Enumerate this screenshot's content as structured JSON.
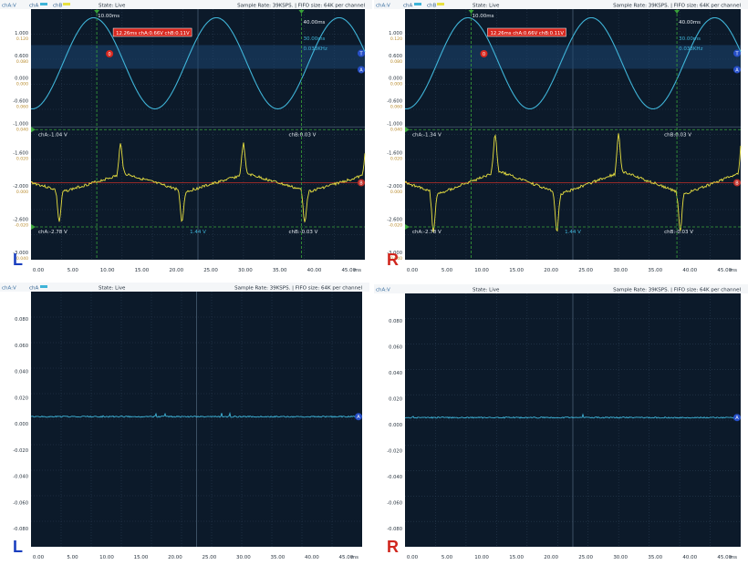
{
  "panels": [
    {
      "id": "p1",
      "side": "L",
      "type": "dual",
      "ch_a_label": "chA",
      "ch_b_label": "chB",
      "axis_unit": "chA:V",
      "state": "State: Live",
      "sample_info": "Sample Rate: 39KSPS. | FIFO size: 64K per channel",
      "time_unit": "ms",
      "x_ticks": [
        "0.00",
        "5.00",
        "10.00",
        "15.00",
        "20.00",
        "25.00",
        "30.00",
        "35.00",
        "40.00",
        "45.00"
      ],
      "chA_ticks_left": [
        "1.000",
        "0.600",
        "0.000",
        "-0.600",
        "-1.000"
      ],
      "chA_ticks_right": [
        "0.120",
        "0.080",
        "0.000",
        "0.060",
        "0.040"
      ],
      "chB_ticks_left": [
        "-1.600",
        "-2.000",
        "-2.600",
        "-3.000"
      ],
      "chB_ticks_right": [
        "0.020",
        "0.000",
        "-0.020",
        "-0.040"
      ],
      "cursor1_label": "10.00ms",
      "cursor2_label": "40.00ms",
      "delta_time": "30.00ms",
      "freq": "0.033KHz",
      "readout": "12.26ms  chA:0.66V  chB:0.11V",
      "chA_max": "chA:-1.04 V",
      "chA_min": "chA:-2.78 V",
      "chB_max": "chB:0.03 V",
      "chB_min": "chB:-0.03 V",
      "mid_label": "1.44 V",
      "marker0": "0",
      "marker_T": "T",
      "marker_A": "A",
      "marker_B": "B"
    },
    {
      "id": "p2",
      "side": "R",
      "type": "dual",
      "ch_a_label": "chA",
      "ch_b_label": "chB",
      "axis_unit": "chA:V",
      "state": "State: Live",
      "sample_info": "Sample Rate: 39KSPS. | FIFO size: 64K per channel",
      "time_unit": "ms",
      "x_ticks": [
        "0.00",
        "5.00",
        "10.00",
        "15.00",
        "20.00",
        "25.00",
        "30.00",
        "35.00",
        "40.00",
        "45.00"
      ],
      "chA_ticks_left": [
        "1.000",
        "0.600",
        "0.000",
        "-0.600",
        "-1.000"
      ],
      "chA_ticks_right": [
        "0.120",
        "0.080",
        "0.000",
        "0.060",
        "0.040"
      ],
      "chB_ticks_left": [
        "-1.600",
        "-2.000",
        "-2.600",
        "-3.000"
      ],
      "chB_ticks_right": [
        "0.020",
        "0.000",
        "-0.020",
        "-0.040"
      ],
      "cursor1_label": "10.00ms",
      "cursor2_label": "40.00ms",
      "delta_time": "30.00ms",
      "freq": "0.033KHz",
      "readout": "12.26ms  chA:0.66V  chB:0.11V",
      "chA_max": "chA:-1.34 V",
      "chA_min": "chA:-2.78 V",
      "chB_max": "chB:0.03 V",
      "chB_min": "chB:-0.03 V",
      "mid_label": "1.44 V",
      "marker0": "0",
      "marker_T": "T",
      "marker_A": "A",
      "marker_B": "B"
    },
    {
      "id": "p3",
      "side": "L",
      "type": "single",
      "ch_a_label": "chA",
      "axis_unit": "chA:V",
      "state": "State: Live",
      "sample_info": "Sample Rate: 39KSPS. | FIFO size: 64K per channel",
      "time_unit": "ms",
      "x_ticks": [
        "0.00",
        "5.00",
        "10.00",
        "15.00",
        "20.00",
        "25.00",
        "30.00",
        "35.00",
        "40.00",
        "45.00"
      ],
      "y_ticks": [
        "0.080",
        "0.060",
        "0.040",
        "0.020",
        "0.000",
        "-0.020",
        "-0.040",
        "-0.060",
        "-0.080"
      ],
      "marker_A": "A"
    },
    {
      "id": "p4",
      "side": "R",
      "type": "single",
      "axis_unit": "chA:V",
      "state": "State: Live",
      "sample_info": "Sample Rate: 39KSPS. | FIFO size: 64K per channel",
      "time_unit": "ms",
      "x_ticks": [
        "0.00",
        "5.00",
        "10.00",
        "15.00",
        "20.00",
        "25.00",
        "30.00",
        "35.00",
        "40.00",
        "45.00"
      ],
      "y_ticks": [
        "0.080",
        "0.060",
        "0.040",
        "0.020",
        "0.000",
        "-0.020",
        "-0.040",
        "-0.060",
        "-0.080"
      ],
      "marker_A": "A"
    }
  ],
  "colors": {
    "plot_bg": "#0c1a2a",
    "grid": "#2a3d52",
    "chA": "#3fb4d8",
    "chB": "#e8e040",
    "cursor": "#3aa33a",
    "ref_red": "#c0302a",
    "band": "#1c4670",
    "axis_text": "#9aa7b5",
    "side_L": "#1a3fbf",
    "side_R": "#d0261d"
  }
}
